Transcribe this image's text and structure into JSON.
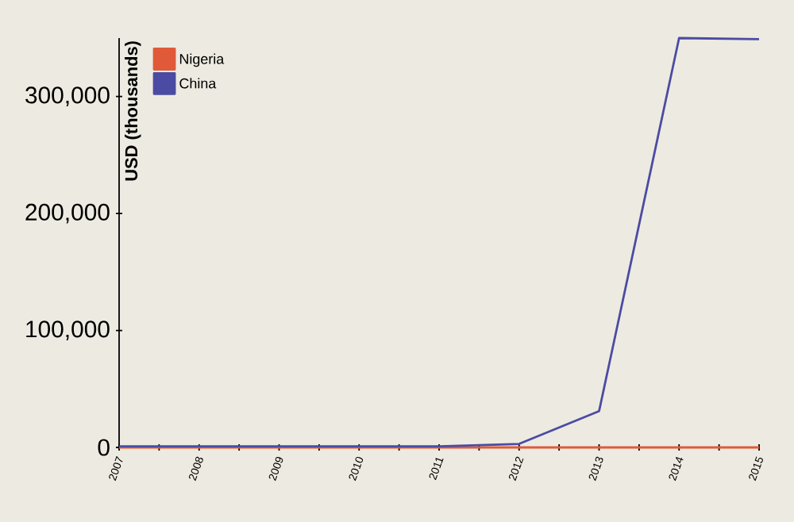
{
  "chart_data": {
    "type": "line",
    "ylabel": "USD (thousands)",
    "x": [
      2007,
      2008,
      2009,
      2010,
      2011,
      2012,
      2013,
      2014,
      2015
    ],
    "series": [
      {
        "name": "Nigeria",
        "color": "#e05a3a",
        "values": [
          0,
          0,
          0,
          0,
          0,
          0,
          0,
          0,
          0
        ]
      },
      {
        "name": "China",
        "color": "#4b4ba3",
        "values": [
          1000,
          1000,
          1000,
          1000,
          1000,
          3000,
          31000,
          350000,
          349000
        ]
      }
    ],
    "xlim": [
      2007,
      2015
    ],
    "xticks": [
      2007,
      {
        "value": 2007.5,
        "label": null
      },
      2008,
      {
        "value": 2008.5,
        "label": null
      },
      2009,
      {
        "value": 2009.5,
        "label": null
      },
      2010,
      {
        "value": 2010.5,
        "label": null
      },
      2011,
      {
        "value": 2011.5,
        "label": null
      },
      2012,
      {
        "value": 2012.5,
        "label": null
      },
      2013,
      {
        "value": 2013.5,
        "label": null
      },
      2014,
      {
        "value": 2014.5,
        "label": null
      },
      2015
    ],
    "ylim": [
      0,
      350000
    ],
    "yticks": [
      0,
      {
        "value": 100000,
        "label": "100,000"
      },
      {
        "value": 200000,
        "label": "200,000"
      },
      {
        "value": 300000,
        "label": "300,000"
      }
    ],
    "grid": false,
    "legend": "top left",
    "marker": "none",
    "line_style": "solid"
  }
}
